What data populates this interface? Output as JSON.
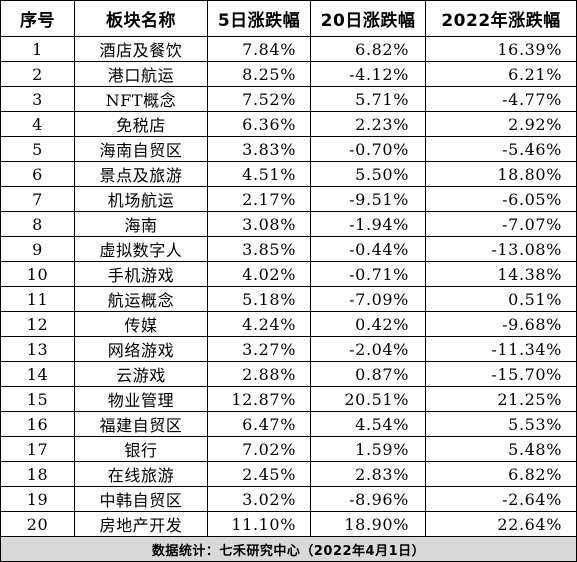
{
  "table": {
    "headers": [
      "序号",
      "板块名称",
      "5日涨跌幅",
      "20日涨跌幅",
      "2022年涨跌幅"
    ],
    "rows": [
      [
        "1",
        "酒店及餐饮",
        "7.84%",
        "6.82%",
        "16.39%"
      ],
      [
        "2",
        "港口航运",
        "8.25%",
        "-4.12%",
        "6.21%"
      ],
      [
        "3",
        "NFT概念",
        "7.52%",
        "5.71%",
        "-4.77%"
      ],
      [
        "4",
        "免税店",
        "6.36%",
        "2.23%",
        "2.92%"
      ],
      [
        "5",
        "海南自贸区",
        "3.83%",
        "-0.70%",
        "-5.46%"
      ],
      [
        "6",
        "景点及旅游",
        "4.51%",
        "5.50%",
        "18.80%"
      ],
      [
        "7",
        "机场航运",
        "2.17%",
        "-9.51%",
        "-6.05%"
      ],
      [
        "8",
        "海南",
        "3.08%",
        "-1.94%",
        "-7.07%"
      ],
      [
        "9",
        "虚拟数字人",
        "3.85%",
        "-0.44%",
        "-13.08%"
      ],
      [
        "10",
        "手机游戏",
        "4.02%",
        "-0.71%",
        "14.38%"
      ],
      [
        "11",
        "航运概念",
        "5.18%",
        "-7.09%",
        "0.51%"
      ],
      [
        "12",
        "传媒",
        "4.24%",
        "0.42%",
        "-9.68%"
      ],
      [
        "13",
        "网络游戏",
        "3.27%",
        "-2.04%",
        "-11.34%"
      ],
      [
        "14",
        "云游戏",
        "2.88%",
        "0.87%",
        "-15.70%"
      ],
      [
        "15",
        "物业管理",
        "12.87%",
        "20.51%",
        "21.25%"
      ],
      [
        "16",
        "福建自贸区",
        "6.47%",
        "4.54%",
        "5.53%"
      ],
      [
        "17",
        "银行",
        "7.02%",
        "1.59%",
        "5.48%"
      ],
      [
        "18",
        "在线旅游",
        "2.45%",
        "2.83%",
        "6.82%"
      ],
      [
        "19",
        "中韩自贸区",
        "3.02%",
        "-8.96%",
        "-2.64%"
      ],
      [
        "20",
        "房地产开发",
        "11.10%",
        "18.90%",
        "22.64%"
      ]
    ],
    "footer": "数据统计：七禾研究中心（2022年4月1日）"
  }
}
